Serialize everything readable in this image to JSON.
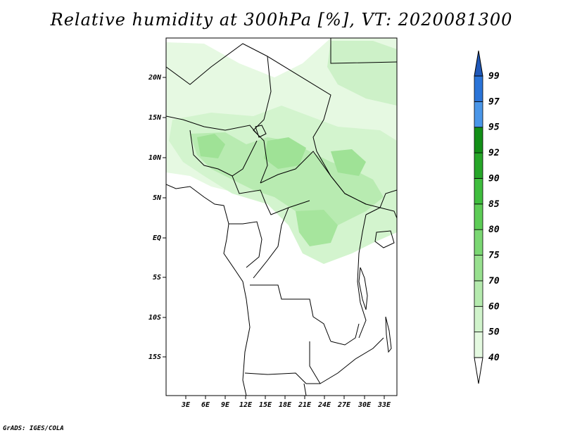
{
  "title": "Relative humidity at 300hPa [%], VT: 2020081300",
  "credit": "GrADS: IGES/COLA",
  "axes": {
    "lat_labels": [
      "20N",
      "15N",
      "10N",
      "5N",
      "EQ",
      "5S",
      "10S",
      "15S"
    ],
    "lon_labels": [
      "3E",
      "6E",
      "9E",
      "12E",
      "15E",
      "18E",
      "21E",
      "24E",
      "27E",
      "30E",
      "33E"
    ]
  },
  "colorbar": {
    "levels": [
      "40",
      "50",
      "60",
      "70",
      "75",
      "80",
      "85",
      "90",
      "92",
      "95",
      "97",
      "99"
    ],
    "colors": [
      "#f2fdf0",
      "#e4f9e0",
      "#d0f3cb",
      "#b5eaae",
      "#98e08f",
      "#7bd773",
      "#5dcc56",
      "#3fbd3e",
      "#26a628",
      "#128f17",
      "#4a96e8",
      "#2a74d8",
      "#1f58b8"
    ]
  },
  "chart_data": {
    "type": "heatmap",
    "title": "Relative humidity at 300hPa [%], VT: 2020081300",
    "variable": "Relative humidity at 300hPa",
    "units": "%",
    "valid_time": "2020081300",
    "lon_range": [
      0,
      35
    ],
    "lat_range": [
      -20,
      25
    ],
    "contour_levels": [
      40,
      50,
      60,
      70,
      75,
      80,
      85,
      90,
      92,
      95,
      97,
      99
    ]
  }
}
